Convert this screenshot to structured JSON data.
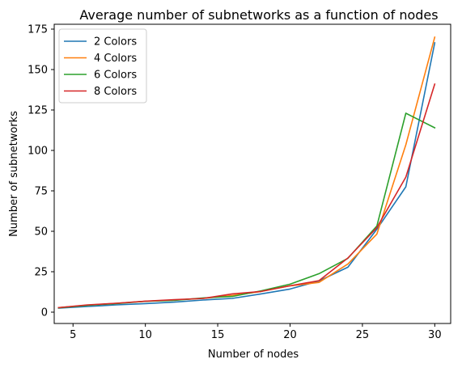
{
  "chart_data": {
    "type": "line",
    "title": "Average number of subnetworks as a function of nodes",
    "xlabel": "Number of nodes",
    "ylabel": "Number of subnetworks",
    "xlim": [
      3.7,
      31.1
    ],
    "ylim": [
      -7,
      178
    ],
    "xticks": [
      5,
      10,
      15,
      20,
      25,
      30
    ],
    "yticks": [
      0,
      25,
      50,
      75,
      100,
      125,
      150,
      175
    ],
    "legend_position": "top-left",
    "x": [
      4,
      6,
      8,
      10,
      12,
      14,
      16,
      18,
      20,
      22,
      24,
      26,
      28,
      30
    ],
    "series": [
      {
        "name": "2 Colors",
        "color": "#1f77b4",
        "values": [
          2.5,
          3.5,
          4.5,
          5.3,
          6.2,
          7.5,
          8.5,
          11.3,
          14.3,
          19.3,
          27.8,
          51.3,
          77.5,
          166.5
        ]
      },
      {
        "name": "4 Colors",
        "color": "#ff7f0e",
        "values": [
          2.8,
          4.3,
          5.5,
          6.7,
          7.5,
          8.5,
          10.3,
          12.8,
          16.3,
          18.4,
          29.8,
          48.3,
          103.5,
          170
        ]
      },
      {
        "name": "6 Colors",
        "color": "#2ca02c",
        "values": [
          2.7,
          4.2,
          5.3,
          6.7,
          7.3,
          8.8,
          9.7,
          13.2,
          17.3,
          23.8,
          33.3,
          53.3,
          123,
          114
        ]
      },
      {
        "name": "8 Colors",
        "color": "#d62728",
        "values": [
          2.8,
          4.5,
          5.5,
          6.8,
          7.7,
          8.5,
          11.3,
          12.8,
          16.3,
          19.5,
          33.5,
          52.3,
          83.5,
          141
        ]
      }
    ]
  }
}
